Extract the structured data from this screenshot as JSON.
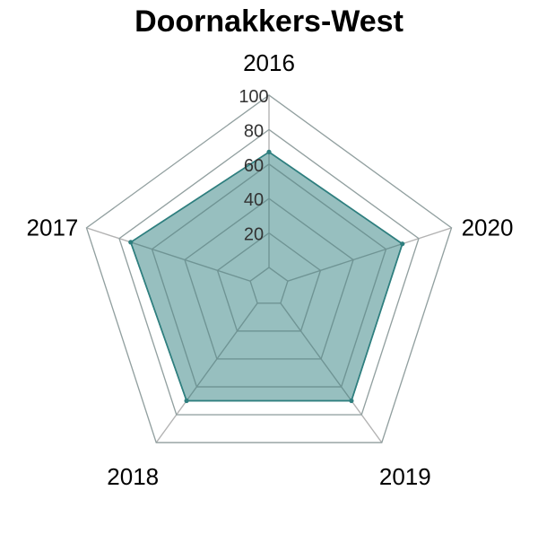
{
  "chart_data": {
    "type": "radar",
    "title": "Doornakkers-West",
    "categories": [
      "2016",
      "2017",
      "2018",
      "2019",
      "2020"
    ],
    "series": [
      {
        "values": [
          67,
          73,
          70,
          70,
          70
        ],
        "color": "#2f7f7f"
      }
    ],
    "rlim": [
      0,
      100
    ],
    "radial_ticks": [
      "20",
      "40",
      "60",
      "80",
      "100"
    ],
    "grid": true,
    "colors": {
      "fill": "#2f7f7f",
      "stroke": "#2f7f7f",
      "grid": "#b3b3b3",
      "inner_grid": "#6f8f8f"
    }
  }
}
